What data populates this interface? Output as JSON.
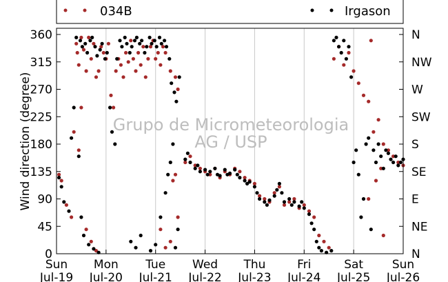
{
  "chart_data": {
    "type": "scatter",
    "ylabel": "Wind direction (degree)",
    "ylim": [
      0,
      360
    ],
    "yticks": [
      0,
      45,
      90,
      135,
      180,
      225,
      270,
      315,
      360
    ],
    "compass_ticks": [
      "N",
      "NE",
      "E",
      "SE",
      "S",
      "SW",
      "W",
      "NW",
      "N"
    ],
    "xlim": [
      "Jul-19 00:00",
      "Jul-26 00:00"
    ],
    "xticks": [
      {
        "day": "Sun",
        "date": "Jul-19"
      },
      {
        "day": "Mon",
        "date": "Jul-20"
      },
      {
        "day": "Tue",
        "date": "Jul-21"
      },
      {
        "day": "Wed",
        "date": "Jul-22"
      },
      {
        "day": "Thu",
        "date": "Jul-23"
      },
      {
        "day": "Fri",
        "date": "Jul-24"
      },
      {
        "day": "Sat",
        "date": "Jul-25"
      },
      {
        "day": "Sun",
        "date": "Jul-26"
      }
    ],
    "grid": "vertical lines at day boundaries",
    "legend_position": "top, above plot",
    "watermark": [
      "Grupo de Micrometeorologia",
      "AG / USP"
    ],
    "series": [
      {
        "name": "034B",
        "color": "#a52a2a",
        "x_unit": "days since Jul-19 00:00",
        "points": [
          [
            0.05,
            130
          ],
          [
            0.1,
            120
          ],
          [
            0.2,
            80
          ],
          [
            0.3,
            60
          ],
          [
            0.35,
            200
          ],
          [
            0.45,
            170
          ],
          [
            0.5,
            240
          ],
          [
            0.6,
            40
          ],
          [
            0.7,
            20
          ],
          [
            0.8,
            5
          ],
          [
            0.4,
            345
          ],
          [
            0.42,
            330
          ],
          [
            0.45,
            310
          ],
          [
            0.5,
            355
          ],
          [
            0.55,
            335
          ],
          [
            0.6,
            300
          ],
          [
            0.65,
            355
          ],
          [
            0.7,
            320
          ],
          [
            0.75,
            345
          ],
          [
            0.8,
            290
          ],
          [
            0.85,
            300
          ],
          [
            0.9,
            340
          ],
          [
            0.95,
            330
          ],
          [
            1.0,
            320
          ],
          [
            1.05,
            345
          ],
          [
            1.1,
            260
          ],
          [
            1.15,
            240
          ],
          [
            1.2,
            300
          ],
          [
            1.25,
            320
          ],
          [
            1.3,
            310
          ],
          [
            1.35,
            290
          ],
          [
            1.4,
            330
          ],
          [
            1.45,
            315
          ],
          [
            1.5,
            350
          ],
          [
            1.55,
            320
          ],
          [
            1.6,
            300
          ],
          [
            1.65,
            330
          ],
          [
            1.7,
            310
          ],
          [
            1.75,
            340
          ],
          [
            1.8,
            290
          ],
          [
            1.85,
            320
          ],
          [
            1.9,
            340
          ],
          [
            1.95,
            350
          ],
          [
            2.0,
            320
          ],
          [
            2.05,
            330
          ],
          [
            2.1,
            310
          ],
          [
            2.15,
            340
          ],
          [
            2.2,
            330
          ],
          [
            2.3,
            300
          ],
          [
            2.4,
            290
          ],
          [
            2.45,
            270
          ],
          [
            2.1,
            40
          ],
          [
            2.2,
            10
          ],
          [
            2.3,
            20
          ],
          [
            2.35,
            120
          ],
          [
            2.4,
            130
          ],
          [
            2.45,
            60
          ],
          [
            2.6,
            150
          ],
          [
            2.7,
            160
          ],
          [
            2.8,
            145
          ],
          [
            2.9,
            140
          ],
          [
            3.0,
            135
          ],
          [
            3.1,
            130
          ],
          [
            3.2,
            140
          ],
          [
            3.3,
            125
          ],
          [
            3.4,
            135
          ],
          [
            3.5,
            130
          ],
          [
            3.6,
            140
          ],
          [
            3.7,
            135
          ],
          [
            3.8,
            125
          ],
          [
            3.9,
            120
          ],
          [
            4.0,
            115
          ],
          [
            4.1,
            95
          ],
          [
            4.2,
            90
          ],
          [
            4.3,
            85
          ],
          [
            4.4,
            100
          ],
          [
            4.5,
            110
          ],
          [
            4.6,
            80
          ],
          [
            4.7,
            85
          ],
          [
            4.8,
            90
          ],
          [
            4.9,
            75
          ],
          [
            5.0,
            80
          ],
          [
            5.1,
            70
          ],
          [
            5.2,
            60
          ],
          [
            5.3,
            30
          ],
          [
            5.4,
            20
          ],
          [
            5.5,
            10
          ],
          [
            5.6,
            320
          ],
          [
            5.7,
            340
          ],
          [
            5.8,
            310
          ],
          [
            5.9,
            330
          ],
          [
            6.0,
            300
          ],
          [
            6.1,
            280
          ],
          [
            6.2,
            260
          ],
          [
            6.3,
            250
          ],
          [
            6.4,
            200
          ],
          [
            6.5,
            220
          ],
          [
            6.6,
            180
          ],
          [
            6.7,
            170
          ],
          [
            6.8,
            160
          ],
          [
            6.9,
            150
          ],
          [
            7.0,
            145
          ],
          [
            6.35,
            350
          ],
          [
            6.45,
            120
          ],
          [
            6.55,
            140
          ],
          [
            6.6,
            30
          ],
          [
            6.3,
            90
          ]
        ]
      },
      {
        "name": "Irgason",
        "color": "#000000",
        "x_unit": "days since Jul-19 00:00",
        "points": [
          [
            0.05,
            125
          ],
          [
            0.1,
            110
          ],
          [
            0.15,
            85
          ],
          [
            0.25,
            70
          ],
          [
            0.3,
            190
          ],
          [
            0.35,
            240
          ],
          [
            0.45,
            160
          ],
          [
            0.5,
            60
          ],
          [
            0.55,
            30
          ],
          [
            0.65,
            15
          ],
          [
            0.75,
            8
          ],
          [
            0.85,
            2
          ],
          [
            0.4,
            355
          ],
          [
            0.48,
            350
          ],
          [
            0.52,
            340
          ],
          [
            0.58,
            345
          ],
          [
            0.62,
            330
          ],
          [
            0.68,
            350
          ],
          [
            0.72,
            355
          ],
          [
            0.78,
            340
          ],
          [
            0.82,
            325
          ],
          [
            0.88,
            335
          ],
          [
            0.92,
            345
          ],
          [
            0.98,
            320
          ],
          [
            1.02,
            330
          ],
          [
            1.08,
            240
          ],
          [
            1.12,
            200
          ],
          [
            1.18,
            180
          ],
          [
            1.22,
            320
          ],
          [
            1.28,
            350
          ],
          [
            1.32,
            340
          ],
          [
            1.38,
            355
          ],
          [
            1.42,
            345
          ],
          [
            1.48,
            330
          ],
          [
            1.52,
            340
          ],
          [
            1.58,
            350
          ],
          [
            1.62,
            355
          ],
          [
            1.68,
            345
          ],
          [
            1.72,
            350
          ],
          [
            1.78,
            330
          ],
          [
            1.82,
            340
          ],
          [
            1.88,
            355
          ],
          [
            1.92,
            345
          ],
          [
            1.98,
            350
          ],
          [
            2.02,
            340
          ],
          [
            2.08,
            355
          ],
          [
            2.12,
            345
          ],
          [
            2.18,
            350
          ],
          [
            2.22,
            340
          ],
          [
            2.28,
            320
          ],
          [
            2.32,
            280
          ],
          [
            2.38,
            265
          ],
          [
            2.42,
            250
          ],
          [
            2.48,
            290
          ],
          [
            1.5,
            20
          ],
          [
            1.6,
            10
          ],
          [
            1.7,
            30
          ],
          [
            1.9,
            5
          ],
          [
            2.0,
            15
          ],
          [
            2.1,
            60
          ],
          [
            2.2,
            100
          ],
          [
            2.25,
            130
          ],
          [
            2.3,
            150
          ],
          [
            2.35,
            180
          ],
          [
            2.4,
            10
          ],
          [
            2.45,
            40
          ],
          [
            2.6,
            155
          ],
          [
            2.65,
            165
          ],
          [
            2.7,
            150
          ],
          [
            2.8,
            140
          ],
          [
            2.85,
            145
          ],
          [
            2.9,
            135
          ],
          [
            3.0,
            138
          ],
          [
            3.05,
            130
          ],
          [
            3.1,
            135
          ],
          [
            3.2,
            140
          ],
          [
            3.25,
            130
          ],
          [
            3.3,
            128
          ],
          [
            3.4,
            138
          ],
          [
            3.45,
            130
          ],
          [
            3.5,
            132
          ],
          [
            3.6,
            138
          ],
          [
            3.65,
            130
          ],
          [
            3.7,
            125
          ],
          [
            3.8,
            120
          ],
          [
            3.85,
            115
          ],
          [
            3.9,
            118
          ],
          [
            4.0,
            110
          ],
          [
            4.05,
            100
          ],
          [
            4.1,
            90
          ],
          [
            4.2,
            85
          ],
          [
            4.25,
            80
          ],
          [
            4.3,
            88
          ],
          [
            4.4,
            95
          ],
          [
            4.45,
            105
          ],
          [
            4.5,
            115
          ],
          [
            4.55,
            100
          ],
          [
            4.6,
            85
          ],
          [
            4.7,
            90
          ],
          [
            4.75,
            80
          ],
          [
            4.8,
            85
          ],
          [
            4.9,
            78
          ],
          [
            4.95,
            85
          ],
          [
            5.0,
            75
          ],
          [
            5.1,
            65
          ],
          [
            5.15,
            50
          ],
          [
            5.2,
            40
          ],
          [
            5.25,
            20
          ],
          [
            5.3,
            10
          ],
          [
            5.35,
            5
          ],
          [
            5.45,
            2
          ],
          [
            5.55,
            5
          ],
          [
            5.6,
            350
          ],
          [
            5.65,
            355
          ],
          [
            5.7,
            340
          ],
          [
            5.75,
            330
          ],
          [
            5.8,
            350
          ],
          [
            5.85,
            320
          ],
          [
            5.9,
            340
          ],
          [
            5.95,
            290
          ],
          [
            6.0,
            150
          ],
          [
            6.05,
            170
          ],
          [
            6.1,
            130
          ],
          [
            6.15,
            60
          ],
          [
            6.2,
            90
          ],
          [
            6.25,
            180
          ],
          [
            6.3,
            190
          ],
          [
            6.35,
            40
          ],
          [
            6.4,
            170
          ],
          [
            6.45,
            150
          ],
          [
            6.5,
            180
          ],
          [
            6.55,
            160
          ],
          [
            6.6,
            140
          ],
          [
            6.65,
            170
          ],
          [
            6.7,
            165
          ],
          [
            6.75,
            155
          ],
          [
            6.8,
            150
          ],
          [
            6.85,
            160
          ],
          [
            6.9,
            145
          ],
          [
            6.95,
            150
          ],
          [
            7.0,
            155
          ]
        ]
      }
    ]
  }
}
